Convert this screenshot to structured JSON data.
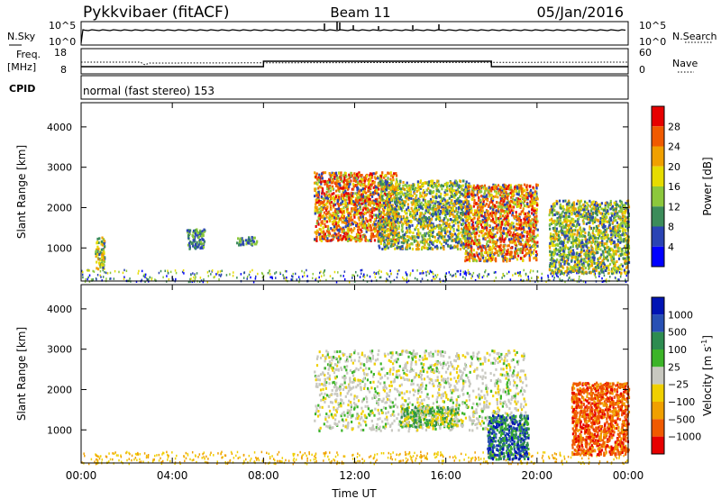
{
  "header": {
    "station": "Pykkvibaer (fitACF)",
    "beam": "Beam 11",
    "date": "05/Jan/2016"
  },
  "top_panels": {
    "nsky_label": "N.Sky",
    "nsearch_label": "N.Search",
    "nsky_ticks": [
      "10^5",
      "10^0"
    ],
    "nsearch_ticks": [
      "10^5",
      "10^0"
    ],
    "freq_label_1": "Freq.",
    "freq_label_2": "[MHz]",
    "freq_ticks": [
      "18",
      "8"
    ],
    "nave_label": "Nave",
    "nave_ticks": [
      "60",
      "0"
    ],
    "cpid_label": "CPID",
    "cpid_text": "normal (fast stereo) 153"
  },
  "colors": {
    "power": [
      "#0000ff",
      "#2a44b4",
      "#3c8c5a",
      "#8cc83c",
      "#e6dc00",
      "#f0a000",
      "#f05a00",
      "#e60000"
    ],
    "velocity": [
      "#e60000",
      "#f05a00",
      "#f0a000",
      "#f0d000",
      "#c8c8c0",
      "#3cb428",
      "#2d8c50",
      "#2850b4",
      "#0014b4"
    ]
  },
  "chart_data": [
    {
      "type": "heatmap",
      "title": "Power",
      "ylabel": "Slant Range [km]",
      "ylim": [
        180,
        4600
      ],
      "yticks": [
        "4000",
        "3000",
        "2000",
        "1000"
      ],
      "xlim": [
        "00:00",
        "24:00"
      ],
      "colorbar_label": "Power [dB]",
      "colorbar_ticks": [
        "28",
        "24",
        "20",
        "16",
        "12",
        "8",
        "4"
      ],
      "regions": [
        {
          "t_start": 0.6,
          "t_end": 1.0,
          "r_min": 500,
          "r_max": 1300,
          "level": "mid"
        },
        {
          "t_start": 4.6,
          "t_end": 5.4,
          "r_min": 1000,
          "r_max": 1500,
          "level": "low"
        },
        {
          "t_start": 6.8,
          "t_end": 7.7,
          "r_min": 1100,
          "r_max": 1300,
          "level": "low"
        },
        {
          "t_start": 10.2,
          "t_end": 13.8,
          "r_min": 1200,
          "r_max": 2900,
          "level": "high"
        },
        {
          "t_start": 13.0,
          "t_end": 17.0,
          "r_min": 1000,
          "r_max": 2700,
          "level": "mid"
        },
        {
          "t_start": 16.8,
          "t_end": 20.0,
          "r_min": 700,
          "r_max": 2600,
          "level": "high"
        },
        {
          "t_start": 20.5,
          "t_end": 24.0,
          "r_min": 400,
          "r_max": 2200,
          "level": "mid"
        }
      ]
    },
    {
      "type": "heatmap",
      "title": "Velocity",
      "ylabel": "Slant Range [km]",
      "ylim": [
        180,
        4600
      ],
      "yticks": [
        "4000",
        "3000",
        "2000",
        "1000"
      ],
      "xlabel": "Time UT",
      "xticks": [
        "00:00",
        "04:00",
        "08:00",
        "12:00",
        "16:00",
        "20:00",
        "00:00"
      ],
      "colorbar_label": "Velocity [m s",
      "colorbar_unit_sup": "-1",
      "colorbar_unit_close": "]",
      "colorbar_ticks": [
        "1000",
        "500",
        "100",
        "25",
        "−25",
        "−100",
        "−500",
        "−1000"
      ],
      "regions": [
        {
          "t_start": 10.2,
          "t_end": 19.5,
          "r_min": 1000,
          "r_max": 3000,
          "level": "grey"
        },
        {
          "t_start": 14.0,
          "t_end": 16.5,
          "r_min": 1100,
          "r_max": 1600,
          "level": "green"
        },
        {
          "t_start": 17.8,
          "t_end": 19.6,
          "r_min": 300,
          "r_max": 1400,
          "level": "blue"
        },
        {
          "t_start": 21.5,
          "t_end": 24.0,
          "r_min": 400,
          "r_max": 2200,
          "level": "orange"
        }
      ]
    }
  ]
}
